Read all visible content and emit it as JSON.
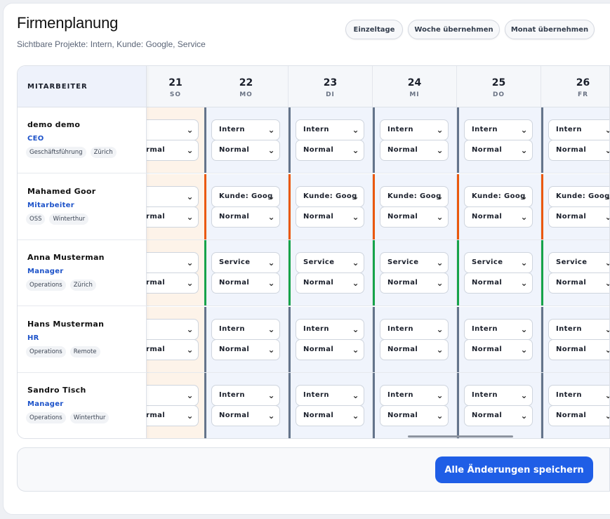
{
  "header": {
    "title": "Firmenplanung",
    "subtitle": "Sichtbare Projekte: Intern, Kunde: Google, Service"
  },
  "toolbar": {
    "single_days": "Einzeltage",
    "apply_week": "Woche übernehmen",
    "apply_month": "Monat übernehmen"
  },
  "grid": {
    "employee_header": "MITARBEITER",
    "days": [
      {
        "num": "21",
        "name": "SO",
        "weekend": true
      },
      {
        "num": "22",
        "name": "MO",
        "weekend": false
      },
      {
        "num": "23",
        "name": "DI",
        "weekend": false
      },
      {
        "num": "24",
        "name": "MI",
        "weekend": false
      },
      {
        "num": "25",
        "name": "DO",
        "weekend": false
      },
      {
        "num": "26",
        "name": "FR",
        "weekend": false
      }
    ],
    "employees": [
      {
        "name": "demo demo",
        "role": "CEO",
        "tags": [
          "Geschäftsführung",
          "Zürich"
        ],
        "project": "Intern",
        "status": "Normal",
        "project_color": "#64748b",
        "sunday_status": "rmal"
      },
      {
        "name": "Mahamed Goor",
        "role": "Mitarbeiter",
        "tags": [
          "OSS",
          "Winterthur"
        ],
        "project": "Kunde: Google",
        "status": "Normal",
        "project_color": "#ea580c",
        "sunday_status": "rmal"
      },
      {
        "name": "Anna Musterman",
        "role": "Manager",
        "tags": [
          "Operations",
          "Zürich"
        ],
        "project": "Service",
        "status": "Normal",
        "project_color": "#16a34a",
        "sunday_status": "rmal"
      },
      {
        "name": "Hans Musterman",
        "role": "HR",
        "tags": [
          "Operations",
          "Remote"
        ],
        "project": "Intern",
        "status": "Normal",
        "project_color": "#64748b",
        "sunday_status": "rmal"
      },
      {
        "name": "Sandro Tisch",
        "role": "Manager",
        "tags": [
          "Operations",
          "Winterthur"
        ],
        "project": "Intern",
        "status": "Normal",
        "project_color": "#64748b",
        "sunday_status": "rmal"
      }
    ]
  },
  "footer": {
    "save_all": "Alle Änderungen speichern"
  },
  "colors": {
    "accent": "#1f5ee6",
    "role": "#1c52c9",
    "weekend_bg": "#fdf3e9",
    "weekday_bg": "#f0f4fc"
  },
  "icons": {
    "select_chevron": "chevron-down-icon"
  }
}
